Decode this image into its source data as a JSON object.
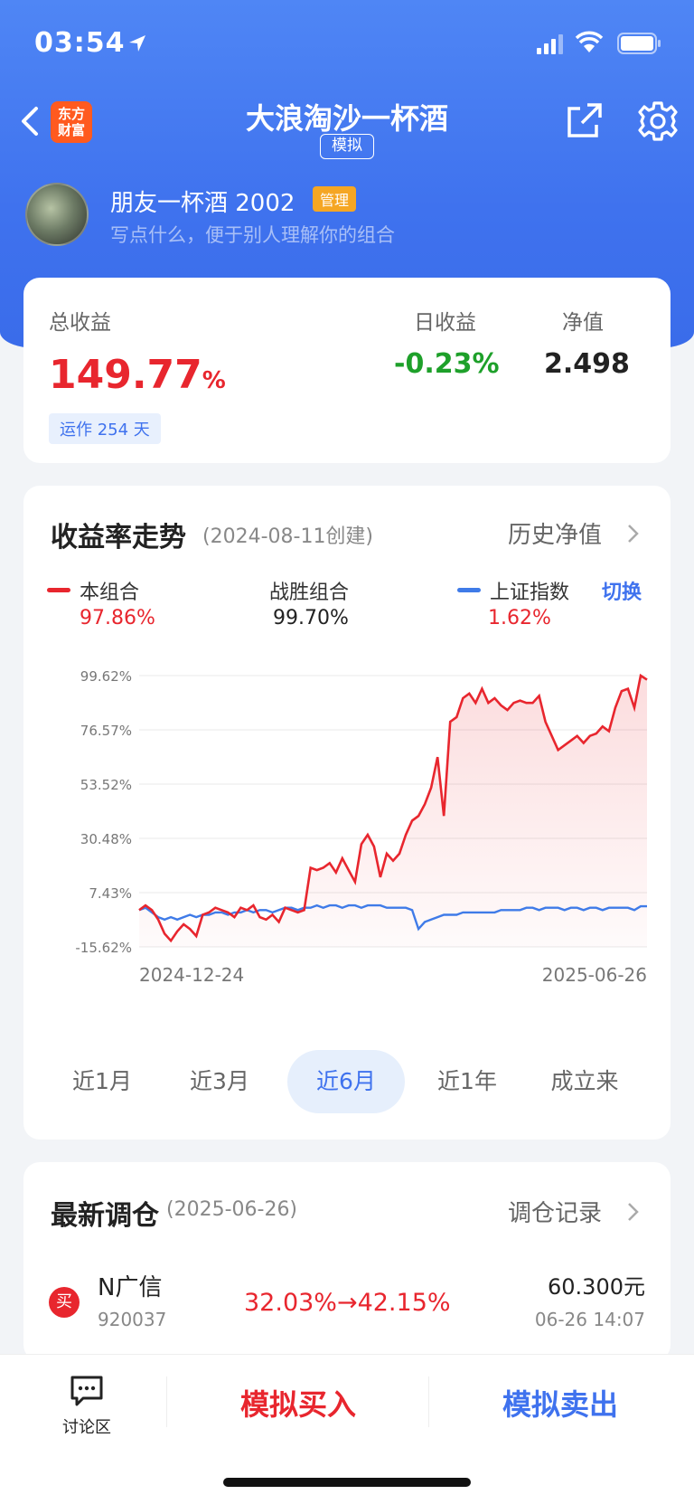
{
  "status": {
    "time": "03:54"
  },
  "nav": {
    "logo_line1": "东方",
    "logo_line2": "财富",
    "title": "大浪淘沙一杯酒",
    "badge": "模拟"
  },
  "profile": {
    "name": "朋友一杯酒 2002",
    "tag": "管理",
    "description": "写点什么，便于别人理解你的组合"
  },
  "summary": {
    "total_label": "总收益",
    "total_value": "149.77",
    "total_unit": "%",
    "run_days": "运作 254 天",
    "daily_label": "日收益",
    "daily_value": "-0.23%",
    "nav_label": "净值",
    "nav_value": "2.498"
  },
  "trend": {
    "title": "收益率走势",
    "created": "(2024-08-11创建)",
    "history_link": "历史净值",
    "switch": "切换",
    "legend": [
      {
        "name": "本组合",
        "value": "97.86%",
        "color": "#e8262e"
      },
      {
        "name": "战胜组合",
        "value": "99.70%",
        "color": "#222222"
      },
      {
        "name": "上证指数",
        "value": "1.62%",
        "color": "#3f7be8"
      }
    ],
    "tabs": [
      "近1月",
      "近3月",
      "近6月",
      "近1年",
      "成立来"
    ],
    "active_tab": "近6月"
  },
  "chart_data": {
    "type": "line",
    "yticks": [
      "99.62%",
      "76.57%",
      "53.52%",
      "30.48%",
      "7.43%",
      "-15.62%"
    ],
    "ylim": [
      -15.62,
      99.62
    ],
    "xtick_labels": [
      "2024-12-24",
      "2025-06-26"
    ],
    "series": [
      {
        "name": "本组合",
        "color": "#e8262e",
        "values": [
          0,
          2,
          0,
          -4,
          -10,
          -13,
          -9,
          -6,
          -8,
          -11,
          -2,
          -1,
          1,
          0,
          -1,
          -3,
          1,
          0,
          2,
          -3,
          -4,
          -2,
          -5,
          1,
          0,
          -1,
          0,
          18,
          17,
          18,
          20,
          16,
          22,
          17,
          12,
          28,
          32,
          27,
          14,
          24,
          21,
          24,
          32,
          38,
          40,
          45,
          52,
          65,
          40,
          80,
          82,
          90,
          92,
          88,
          94,
          88,
          90,
          87,
          85,
          88,
          89,
          88,
          88,
          91,
          80,
          74,
          68,
          70,
          72,
          74,
          71,
          74,
          75,
          78,
          76,
          86,
          93,
          94,
          86,
          99.62,
          97.86
        ]
      },
      {
        "name": "上证指数",
        "color": "#3f7be8",
        "values": [
          0,
          1,
          -1,
          -3,
          -4,
          -3,
          -4,
          -3,
          -2,
          -3,
          -2,
          -2,
          -1,
          -1,
          -2,
          -1,
          -1,
          0,
          -1,
          0,
          0,
          -1,
          0,
          1,
          1,
          0,
          1,
          1,
          2,
          1,
          2,
          2,
          1,
          2,
          2,
          1,
          2,
          2,
          2,
          1,
          1,
          1,
          1,
          0,
          -8,
          -5,
          -4,
          -3,
          -2,
          -2,
          -2,
          -1,
          -1,
          -1,
          -1,
          -1,
          -1,
          0,
          0,
          0,
          0,
          1,
          1,
          0,
          1,
          1,
          1,
          0,
          1,
          1,
          0,
          1,
          1,
          0,
          1,
          1,
          1,
          1,
          0,
          1.62,
          1.62
        ]
      }
    ]
  },
  "rebalance": {
    "title": "最新调仓",
    "date": "(2025-06-26)",
    "record_link": "调仓记录",
    "items": [
      {
        "action": "买",
        "name": "N广信",
        "code": "920037",
        "change": "32.03%→42.15%",
        "price": "60.300元",
        "time": "06-26 14:07"
      }
    ]
  },
  "bottom": {
    "forum": "讨论区",
    "buy": "模拟买入",
    "sell": "模拟卖出"
  }
}
